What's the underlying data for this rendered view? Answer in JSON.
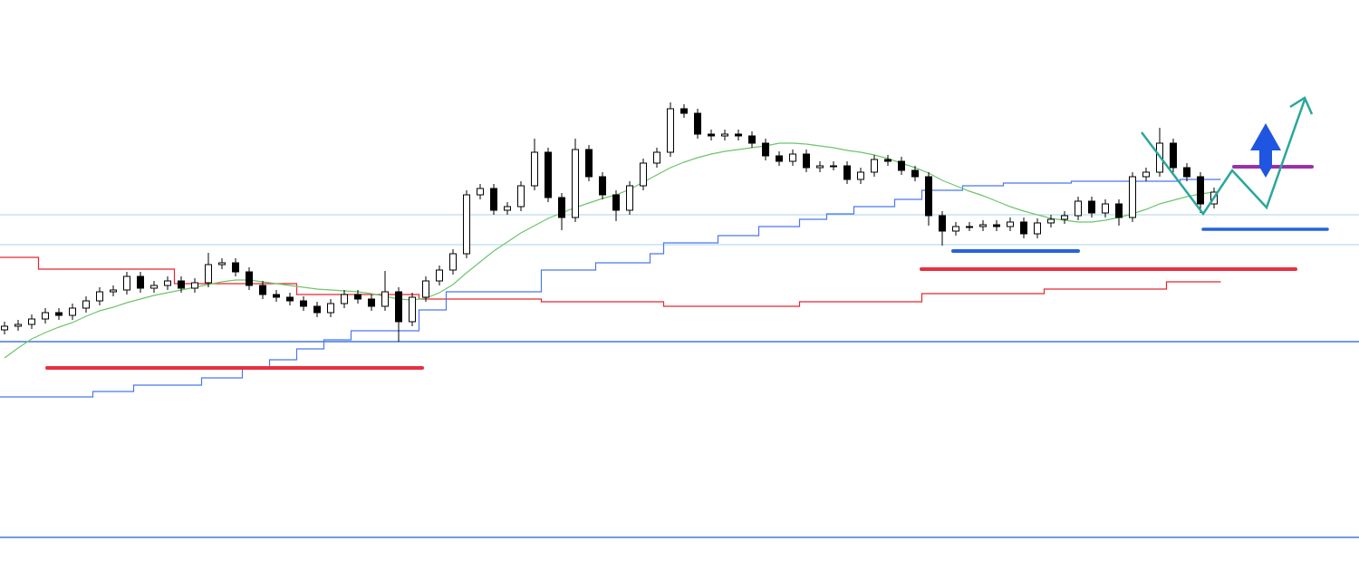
{
  "chart_data": {
    "type": "candlestick",
    "ylim": [
      0,
      629
    ],
    "open": [
      265,
      269,
      271,
      277,
      284,
      281,
      289,
      297,
      307,
      309,
      324,
      311,
      314,
      319,
      311,
      317,
      337,
      339,
      329,
      314,
      304,
      301,
      297,
      291,
      284,
      294,
      304,
      299,
      291,
      307,
      274,
      301,
      319,
      331,
      349,
      414,
      421,
      397,
      401,
      424,
      461,
      411,
      389,
      464,
      434,
      414,
      397,
      424,
      449,
      461,
      509,
      504,
      481,
      479,
      481,
      479,
      471,
      457,
      451,
      459,
      444,
      446,
      446,
      431,
      439,
      453,
      451,
      441,
      434,
      391,
      374,
      379,
      379,
      381,
      379,
      384,
      371,
      383,
      387,
      391,
      407,
      394,
      404,
      389,
      434,
      439,
      471,
      444,
      434,
      404
    ],
    "high": [
      274,
      276,
      282,
      289,
      289,
      294,
      302,
      312,
      314,
      329,
      329,
      319,
      324,
      324,
      322,
      350,
      344,
      344,
      334,
      319,
      309,
      306,
      302,
      296,
      299,
      309,
      309,
      304,
      330,
      312,
      306,
      324,
      336,
      354,
      419,
      426,
      426,
      406,
      429,
      476,
      466,
      416,
      476,
      469,
      439,
      419,
      429,
      454,
      466,
      516,
      514,
      509,
      486,
      486,
      486,
      484,
      476,
      462,
      464,
      464,
      451,
      451,
      451,
      444,
      458,
      458,
      456,
      446,
      439,
      396,
      384,
      384,
      386,
      386,
      389,
      389,
      388,
      392,
      396,
      412,
      412,
      409,
      409,
      439,
      444,
      488,
      476,
      449,
      439,
      422
    ],
    "low": [
      260,
      264,
      266,
      272,
      276,
      276,
      284,
      292,
      302,
      304,
      306,
      306,
      309,
      306,
      306,
      312,
      332,
      324,
      309,
      299,
      296,
      292,
      286,
      279,
      279,
      289,
      294,
      286,
      286,
      252,
      269,
      296,
      314,
      326,
      344,
      409,
      392,
      392,
      396,
      419,
      406,
      375,
      384,
      429,
      409,
      385,
      392,
      419,
      444,
      456,
      499,
      476,
      474,
      474,
      474,
      466,
      452,
      446,
      446,
      439,
      439,
      441,
      426,
      426,
      434,
      446,
      436,
      429,
      380,
      358,
      369,
      374,
      374,
      374,
      374,
      366,
      366,
      378,
      382,
      386,
      389,
      389,
      380,
      384,
      429,
      434,
      439,
      429,
      394,
      399
    ],
    "close": [
      269,
      271,
      277,
      284,
      281,
      289,
      297,
      307,
      309,
      324,
      311,
      314,
      319,
      311,
      317,
      337,
      339,
      329,
      314,
      304,
      301,
      297,
      291,
      284,
      294,
      304,
      299,
      291,
      307,
      274,
      301,
      319,
      331,
      349,
      414,
      421,
      397,
      401,
      424,
      461,
      411,
      389,
      464,
      434,
      414,
      397,
      424,
      449,
      461,
      509,
      504,
      481,
      479,
      481,
      479,
      471,
      457,
      451,
      459,
      444,
      446,
      446,
      431,
      439,
      453,
      451,
      441,
      434,
      391,
      374,
      379,
      379,
      381,
      379,
      384,
      371,
      383,
      387,
      391,
      407,
      394,
      404,
      389,
      434,
      439,
      471,
      444,
      434,
      404,
      417
    ],
    "series": [
      {
        "color": "#e8262e",
        "values": [
          345,
          345,
          345,
          332,
          332,
          332,
          332,
          332,
          332,
          332,
          332,
          332,
          332,
          316,
          316,
          316,
          316,
          316,
          316,
          316,
          316,
          316,
          304,
          304,
          304,
          304,
          304,
          304,
          304,
          304,
          304,
          299,
          299,
          299,
          299,
          299,
          299,
          299,
          299,
          299,
          296,
          296,
          296,
          296,
          296,
          296,
          296,
          296,
          296,
          291,
          291,
          291,
          291,
          291,
          291,
          291,
          291,
          291,
          291,
          296,
          296,
          296,
          296,
          296,
          296,
          296,
          296,
          296,
          305,
          305,
          305,
          305,
          305,
          305,
          305,
          305,
          305,
          310,
          310,
          310,
          310,
          310,
          310,
          310,
          310,
          310,
          318,
          318,
          318,
          318
        ]
      },
      {
        "color": "#4a78f0",
        "values": [
          191,
          191,
          191,
          191,
          191,
          191,
          191,
          197,
          197,
          197,
          204,
          204,
          204,
          204,
          204,
          212,
          212,
          212,
          224,
          224,
          232,
          232,
          244,
          244,
          254,
          254,
          264,
          264,
          264,
          264,
          264,
          287,
          287,
          307,
          307,
          307,
          307,
          307,
          307,
          307,
          331,
          331,
          331,
          331,
          339,
          339,
          339,
          339,
          349,
          361,
          361,
          361,
          361,
          369,
          369,
          369,
          379,
          379,
          379,
          387,
          387,
          393,
          393,
          401,
          401,
          401,
          409,
          409,
          419,
          419,
          419,
          424,
          424,
          424,
          427,
          427,
          427,
          427,
          427,
          429,
          429,
          429,
          429,
          429,
          429,
          429,
          429,
          431,
          431,
          431
        ]
      },
      {
        "color": "#6cc56c",
        "values": [
          234,
          245,
          255,
          262,
          268,
          273,
          280,
          286,
          290,
          295,
          299,
          303,
          306,
          309,
          312,
          315,
          318,
          320,
          320,
          318,
          316,
          314,
          312,
          310,
          309,
          308,
          307,
          305,
          302,
          299,
          298,
          300,
          306,
          315,
          328,
          340,
          352,
          362,
          372,
          380,
          388,
          394,
          400,
          405,
          410,
          414,
          420,
          428,
          436,
          444,
          450,
          455,
          459,
          462,
          464,
          466,
          468,
          471,
          471,
          470,
          468,
          466,
          463,
          461,
          458,
          454,
          449,
          444,
          438,
          430,
          424,
          418,
          413,
          407,
          401,
          396,
          392,
          388,
          386,
          384,
          384,
          386,
          389,
          393,
          398,
          404,
          408,
          412,
          415,
          417
        ]
      }
    ]
  }
}
